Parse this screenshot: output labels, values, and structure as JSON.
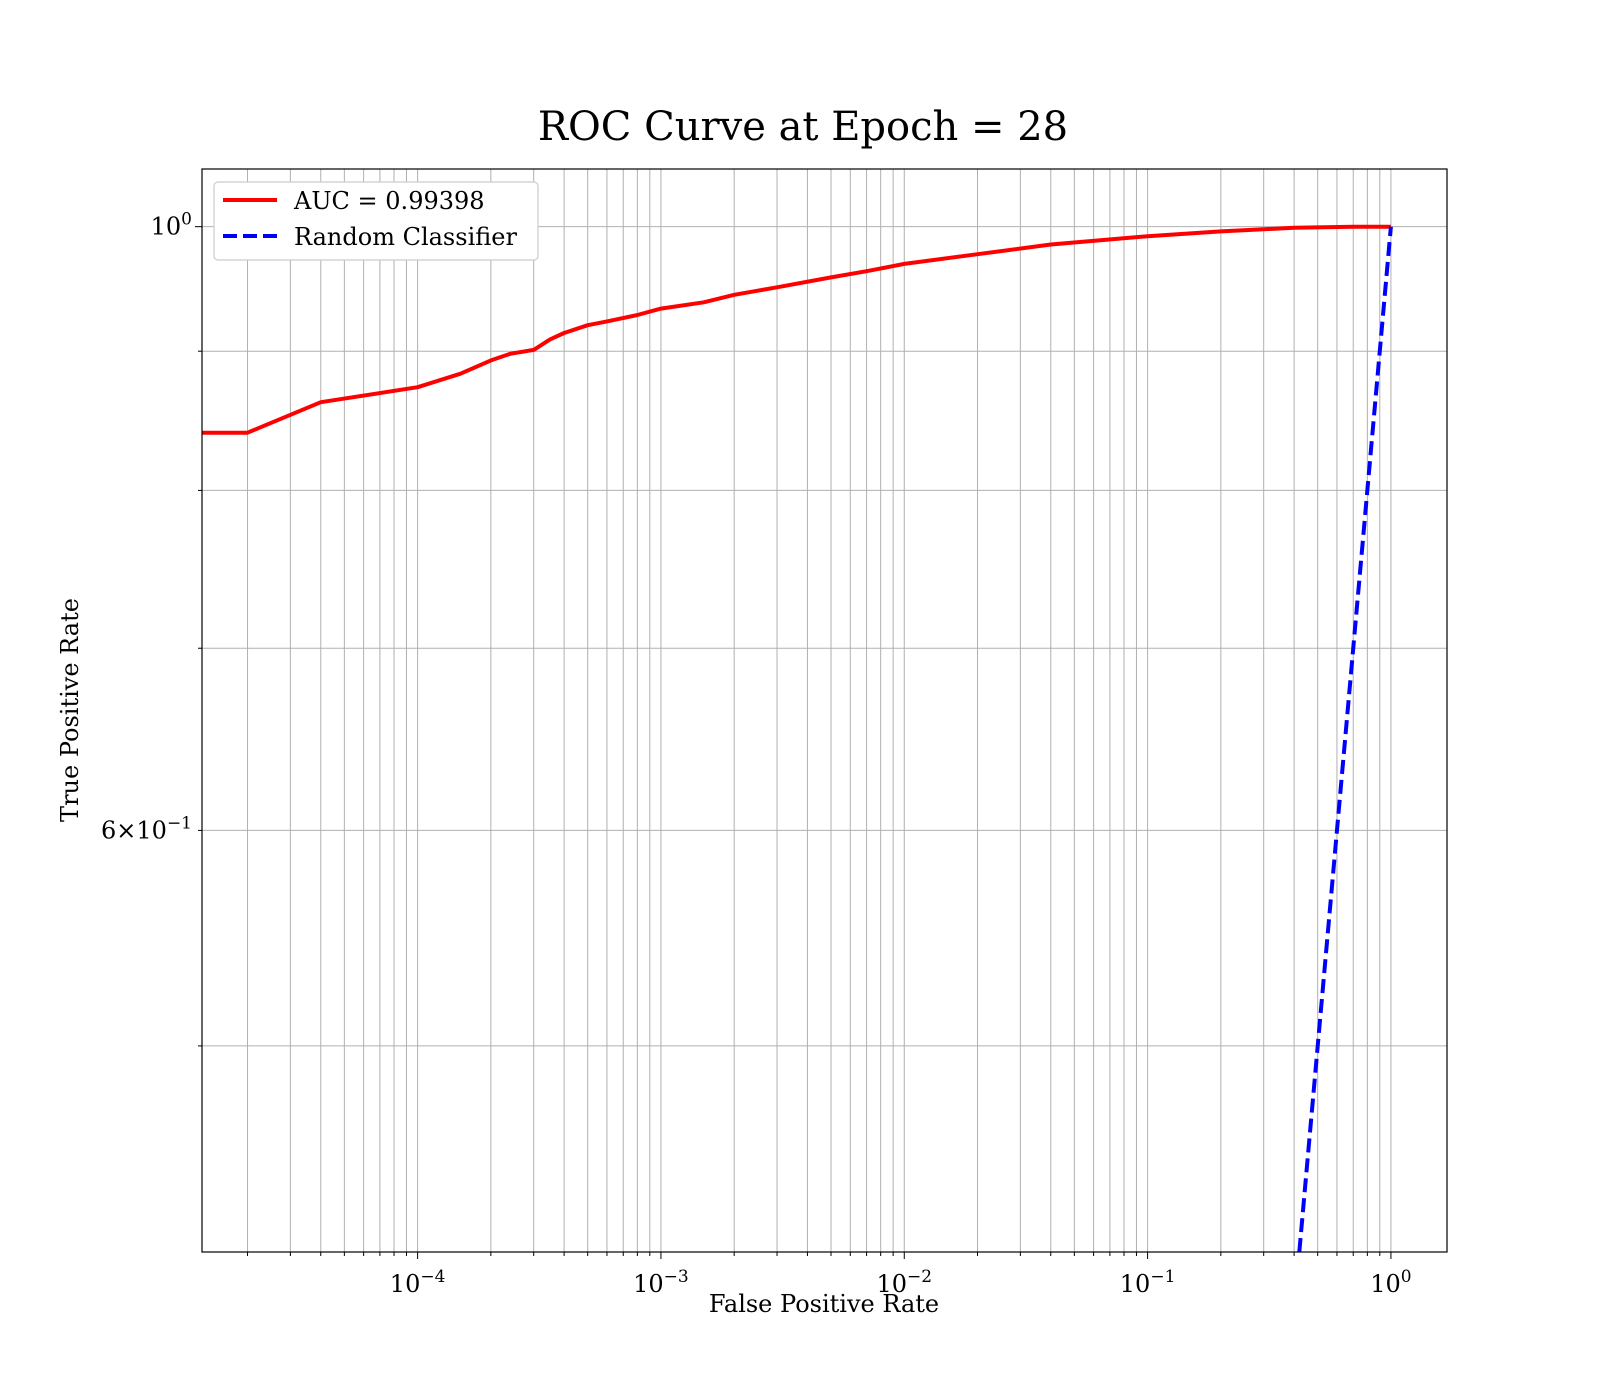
{
  "chart_data": {
    "type": "line",
    "title": "ROC Curve at Epoch = 28",
    "xlabel": "False Positive Rate",
    "ylabel": "True Positive Rate",
    "xscale": "log",
    "yscale": "log",
    "xlim": [
      1.3e-05,
      1.7
    ],
    "ylim": [
      0.42,
      1.05
    ],
    "grid": "on (major and minor)",
    "legend_position": "top-left",
    "x_tick_labels": [
      {
        "value": 0.0001,
        "base": "10",
        "exp": "−4"
      },
      {
        "value": 0.001,
        "base": "10",
        "exp": "−3"
      },
      {
        "value": 0.01,
        "base": "10",
        "exp": "−2"
      },
      {
        "value": 0.1,
        "base": "10",
        "exp": "−1"
      },
      {
        "value": 1,
        "base": "10",
        "exp": "0"
      }
    ],
    "y_tick_labels": [
      {
        "value": 1,
        "base": "10",
        "exp": "0"
      },
      {
        "value": 0.6,
        "base": "6×10",
        "exp": "−1"
      }
    ],
    "series": [
      {
        "name": "AUC = 0.99398",
        "color": "#ff0000",
        "style": "solid",
        "x": [
          1.3e-05,
          2e-05,
          4e-05,
          0.0001,
          0.00015,
          0.0002,
          0.00024,
          0.0003,
          0.00035,
          0.0004,
          0.0005,
          0.0006,
          0.0008,
          0.001,
          0.0015,
          0.002,
          0.003,
          0.005,
          0.007,
          0.01,
          0.02,
          0.04,
          0.1,
          0.2,
          0.4,
          0.7,
          1
        ],
        "y": [
          0.84,
          0.84,
          0.862,
          0.873,
          0.883,
          0.893,
          0.898,
          0.901,
          0.909,
          0.914,
          0.92,
          0.923,
          0.928,
          0.933,
          0.938,
          0.944,
          0.95,
          0.958,
          0.963,
          0.969,
          0.977,
          0.985,
          0.992,
          0.996,
          0.999,
          1.0,
          1.0
        ]
      },
      {
        "name": "Random Classifier",
        "color": "#0000ff",
        "style": "dashed",
        "x": [
          0.42,
          1
        ],
        "y": [
          0.42,
          1
        ]
      }
    ]
  }
}
